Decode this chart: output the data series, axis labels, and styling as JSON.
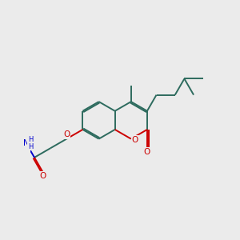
{
  "bg": "#ebebeb",
  "bc": "#2d6b5e",
  "oc": "#cc0000",
  "nc": "#0000cc",
  "lw": 1.4,
  "dbo": 0.07,
  "bl": 1.0,
  "figsize": [
    3.0,
    3.0
  ],
  "dpi": 100,
  "xlim": [
    -1.5,
    8.5
  ],
  "ylim": [
    2.0,
    8.5
  ]
}
